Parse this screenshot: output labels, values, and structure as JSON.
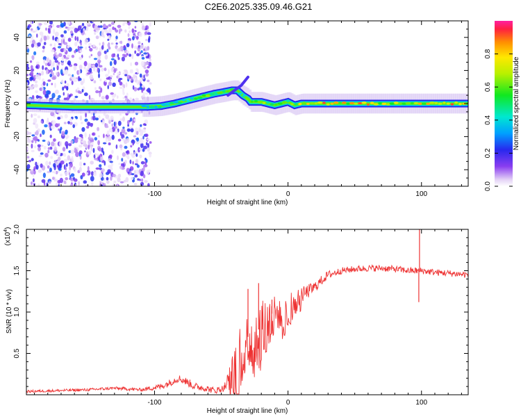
{
  "title": "C2E6.2025.335.09.46.G21",
  "chart_data": [
    {
      "type": "heatmap",
      "name": "spectrogram",
      "xlabel": "Height of straight line (km)",
      "ylabel": "Frequency (Hz)",
      "xlim": [
        -196,
        135
      ],
      "ylim": [
        -50,
        50
      ],
      "xticks": [
        -100,
        0,
        100
      ],
      "yticks": [
        -40,
        -20,
        0,
        20,
        40
      ],
      "colorbar": {
        "label": "Normalized spectral amplitude",
        "range": [
          0,
          1
        ],
        "ticks": [
          "0.0",
          "0.2",
          "0.4",
          "0.6",
          "0.8"
        ]
      },
      "noise_region_x": [
        -196,
        -103
      ],
      "ridge": {
        "x": [
          -196,
          -160,
          -130,
          -115,
          -105,
          -95,
          -85,
          -75,
          -65,
          -55,
          -48,
          -42,
          -38,
          -34,
          -30,
          -28,
          -25,
          -20,
          -15,
          -10,
          -5,
          0,
          5,
          10,
          20,
          40,
          60,
          80,
          100,
          135
        ],
        "y": [
          -1,
          -2,
          -2,
          -2,
          -2,
          -1.5,
          0,
          2,
          4,
          6,
          7,
          8,
          8,
          5,
          3,
          1,
          1,
          1,
          0,
          -1,
          0,
          1,
          -1,
          0,
          0,
          0,
          0,
          0,
          0,
          0
        ]
      },
      "secondary_track": {
        "x": [
          -45,
          -40,
          -35,
          -32,
          -30
        ],
        "y": [
          5,
          8,
          11,
          14,
          16
        ]
      }
    },
    {
      "type": "line",
      "name": "snr",
      "xlabel": "Height of straight line (km)",
      "ylabel": "SNR (10 * v/v)",
      "scale_label": "(x10",
      "scale_exponent": "4",
      "xlim": [
        -196,
        135
      ],
      "ylim": [
        0,
        2.0
      ],
      "xticks": [
        -100,
        0,
        100
      ],
      "yticks": [
        "0.5",
        "1.0",
        "1.5",
        "2.0"
      ],
      "color": "#ee3333",
      "envelope": {
        "x": [
          -196,
          -150,
          -130,
          -110,
          -95,
          -88,
          -82,
          -75,
          -70,
          -62,
          -55,
          -48,
          -42,
          -38,
          -35,
          -30,
          -25,
          -20,
          -15,
          -10,
          -5,
          0,
          5,
          10,
          15,
          20,
          25,
          30,
          40,
          50,
          60,
          70,
          80,
          90,
          95,
          100,
          110,
          120,
          135
        ],
        "y": [
          0.04,
          0.06,
          0.08,
          0.06,
          0.1,
          0.15,
          0.2,
          0.15,
          0.1,
          0.08,
          0.05,
          0.08,
          0.25,
          0.4,
          0.5,
          0.7,
          0.7,
          0.85,
          0.95,
          1.0,
          0.95,
          1.05,
          1.15,
          1.2,
          1.25,
          1.3,
          1.38,
          1.45,
          1.5,
          1.52,
          1.53,
          1.53,
          1.52,
          1.5,
          1.5,
          1.5,
          1.48,
          1.47,
          1.45
        ]
      },
      "noise_amplitude": {
        "x": [
          -196,
          -110,
          -95,
          -75,
          -60,
          -48,
          -42,
          -38,
          -30,
          -25,
          -20,
          -15,
          -10,
          0,
          10,
          20,
          30,
          40,
          135
        ],
        "y": [
          0.015,
          0.02,
          0.04,
          0.05,
          0.04,
          0.04,
          0.2,
          0.35,
          0.3,
          0.3,
          0.3,
          0.25,
          0.2,
          0.15,
          0.1,
          0.07,
          0.05,
          0.04,
          0.04
        ]
      },
      "spikes": [
        {
          "x": 98.5,
          "y": 2.0
        },
        {
          "x": 98.0,
          "y": 1.12
        },
        {
          "x": -30,
          "y": 1.28
        },
        {
          "x": -22,
          "y": 1.35
        },
        {
          "x": -12,
          "y": 1.15
        }
      ]
    }
  ]
}
